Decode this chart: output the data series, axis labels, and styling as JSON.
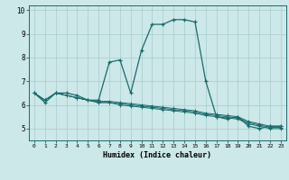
{
  "title": "",
  "xlabel": "Humidex (Indice chaleur)",
  "bg_color": "#cce8e8",
  "line_color": "#1a6b6b",
  "grid_color": "#a8cccc",
  "series": [
    [
      6.5,
      6.1,
      6.5,
      6.5,
      6.4,
      6.2,
      6.2,
      7.8,
      7.9,
      6.5,
      8.3,
      9.4,
      9.4,
      9.6,
      9.6,
      9.5,
      7.0,
      5.5,
      5.4,
      5.5,
      5.1,
      5.0,
      5.1,
      5.1
    ],
    [
      6.5,
      6.2,
      6.5,
      6.4,
      6.3,
      6.2,
      6.15,
      6.15,
      6.1,
      6.05,
      6.0,
      5.95,
      5.9,
      5.85,
      5.8,
      5.75,
      5.65,
      5.6,
      5.55,
      5.5,
      5.3,
      5.2,
      5.1,
      5.1
    ],
    [
      6.5,
      6.2,
      6.5,
      6.4,
      6.3,
      6.2,
      6.1,
      6.1,
      6.05,
      6.0,
      5.95,
      5.9,
      5.85,
      5.8,
      5.75,
      5.7,
      5.6,
      5.55,
      5.5,
      5.45,
      5.25,
      5.15,
      5.05,
      5.05
    ],
    [
      6.5,
      6.2,
      6.5,
      6.4,
      6.3,
      6.2,
      6.1,
      6.1,
      6.0,
      5.95,
      5.9,
      5.85,
      5.8,
      5.75,
      5.7,
      5.65,
      5.55,
      5.5,
      5.45,
      5.4,
      5.2,
      5.1,
      5.0,
      5.0
    ]
  ],
  "x": [
    0,
    1,
    2,
    3,
    4,
    5,
    6,
    7,
    8,
    9,
    10,
    11,
    12,
    13,
    14,
    15,
    16,
    17,
    18,
    19,
    20,
    21,
    22,
    23
  ],
  "ylim": [
    4.5,
    10.2
  ],
  "xlim": [
    -0.5,
    23.5
  ],
  "yticks": [
    5,
    6,
    7,
    8,
    9,
    10
  ],
  "xtick_labels": [
    "0",
    "1",
    "2",
    "3",
    "4",
    "5",
    "6",
    "7",
    "8",
    "9",
    "10",
    "11",
    "12",
    "13",
    "14",
    "15",
    "16",
    "17",
    "18",
    "19",
    "20",
    "21",
    "22",
    "23"
  ]
}
